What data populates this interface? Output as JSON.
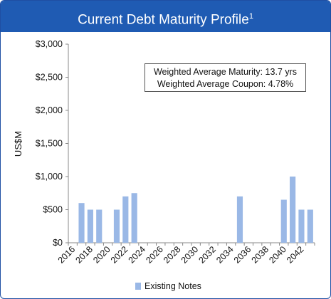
{
  "header": {
    "title": "Current Debt Maturity Profile",
    "footnote": "1"
  },
  "info_box": {
    "line1": "Weighted Average Maturity: 13.7 yrs",
    "line2": "Weighted Average Coupon: 4.78%"
  },
  "colors": {
    "header": "#1f5bb3",
    "bar": "#9ab8e6"
  },
  "chart_data": {
    "type": "bar",
    "title": "Current Debt Maturity Profile",
    "xlabel": "",
    "ylabel": "US$M",
    "ylim": [
      0,
      3000
    ],
    "yticks": [
      "$0",
      "$500",
      "$1,000",
      "$1,500",
      "$2,000",
      "$2,500",
      "$3,000"
    ],
    "xticks": [
      "2016",
      "2018",
      "2020",
      "2022",
      "2024",
      "2026",
      "2028",
      "2030",
      "2032",
      "2034",
      "2036",
      "2038",
      "2040",
      "2042"
    ],
    "legend": "bottom",
    "grid": false,
    "categories": [
      2016,
      2017,
      2018,
      2019,
      2020,
      2021,
      2022,
      2023,
      2024,
      2025,
      2026,
      2027,
      2028,
      2029,
      2030,
      2031,
      2032,
      2033,
      2034,
      2035,
      2036,
      2037,
      2038,
      2039,
      2040,
      2041,
      2042,
      2043
    ],
    "series": [
      {
        "name": "Existing Notes",
        "values": [
          0,
          600,
          500,
          500,
          0,
          500,
          700,
          750,
          0,
          0,
          0,
          0,
          0,
          0,
          0,
          0,
          0,
          0,
          0,
          700,
          0,
          0,
          0,
          0,
          650,
          1000,
          500,
          500
        ]
      }
    ]
  }
}
